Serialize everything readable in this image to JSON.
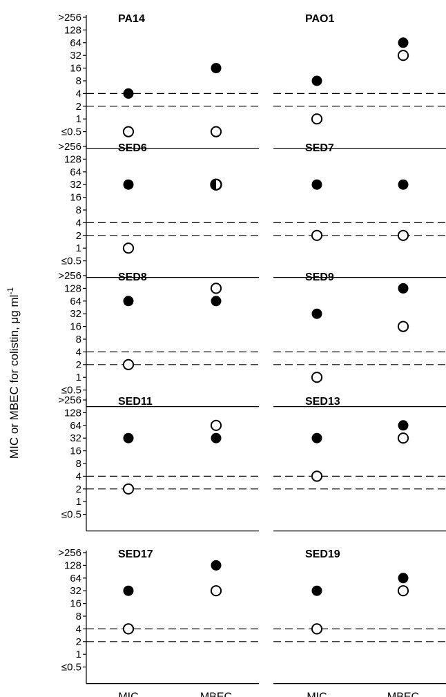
{
  "chart_data": {
    "type": "scatter",
    "ylabel": "MIC or MBEC for colistin, μg ml",
    "ylabel_superscript": "-1",
    "y_ticks": [
      ">256",
      "128",
      "64",
      "32",
      "16",
      "8",
      "4",
      "2",
      "1",
      "≤0.5"
    ],
    "y_log2": true,
    "categories": [
      "MIC",
      "MBEC"
    ],
    "reference_lines": [
      2,
      4
    ],
    "panels": [
      {
        "title": "PA14",
        "filled": {
          "MIC": 4,
          "MBEC": 16
        },
        "open": {
          "MIC": 0.5,
          "MBEC": 0.5
        },
        "dashed": [
          2,
          4
        ]
      },
      {
        "title": "PAO1",
        "filled": {
          "MIC": 8,
          "MBEC": 64
        },
        "open": {
          "MIC": 1,
          "MBEC": 32
        },
        "dashed": [
          2,
          4
        ]
      },
      {
        "title": "SED6",
        "filled": {
          "MIC": 32,
          "MBEC": 32
        },
        "open": {
          "MIC": 1,
          "MBEC": 32
        },
        "dashed": [
          2,
          4
        ]
      },
      {
        "title": "SED7",
        "filled": {
          "MIC": 32,
          "MBEC": 32
        },
        "open": {
          "MIC": 2,
          "MBEC": 2
        },
        "dashed": [
          2,
          4
        ]
      },
      {
        "title": "SED8",
        "filled": {
          "MIC": 64,
          "MBEC": 64
        },
        "open": {
          "MIC": 2,
          "MBEC": 128
        },
        "dashed": [
          2,
          4
        ]
      },
      {
        "title": "SED9",
        "filled": {
          "MIC": 32,
          "MBEC": 128
        },
        "open": {
          "MIC": 1,
          "MBEC": 16
        },
        "dashed": [
          2,
          4
        ]
      },
      {
        "title": "SED11",
        "filled": {
          "MIC": 32,
          "MBEC": 32
        },
        "open": {
          "MIC": 2,
          "MBEC": 64
        },
        "dashed": [
          2,
          4
        ]
      },
      {
        "title": "SED13",
        "filled": {
          "MIC": 32,
          "MBEC": 64
        },
        "open": {
          "MIC": 4,
          "MBEC": 32
        },
        "dashed": [
          2,
          4
        ]
      },
      {
        "title": "SED17",
        "filled": {
          "MIC": 32,
          "MBEC": 128
        },
        "open": {
          "MIC": 4,
          "MBEC": 32
        },
        "dashed": [
          2,
          4
        ]
      },
      {
        "title": "SED19",
        "filled": {
          "MIC": 32,
          "MBEC": 64
        },
        "open": {
          "MIC": 4,
          "MBEC": 32
        },
        "dashed": [
          2,
          4
        ]
      }
    ],
    "marker_legend": {
      "filled": "MBEC",
      "open": "MIC"
    }
  }
}
